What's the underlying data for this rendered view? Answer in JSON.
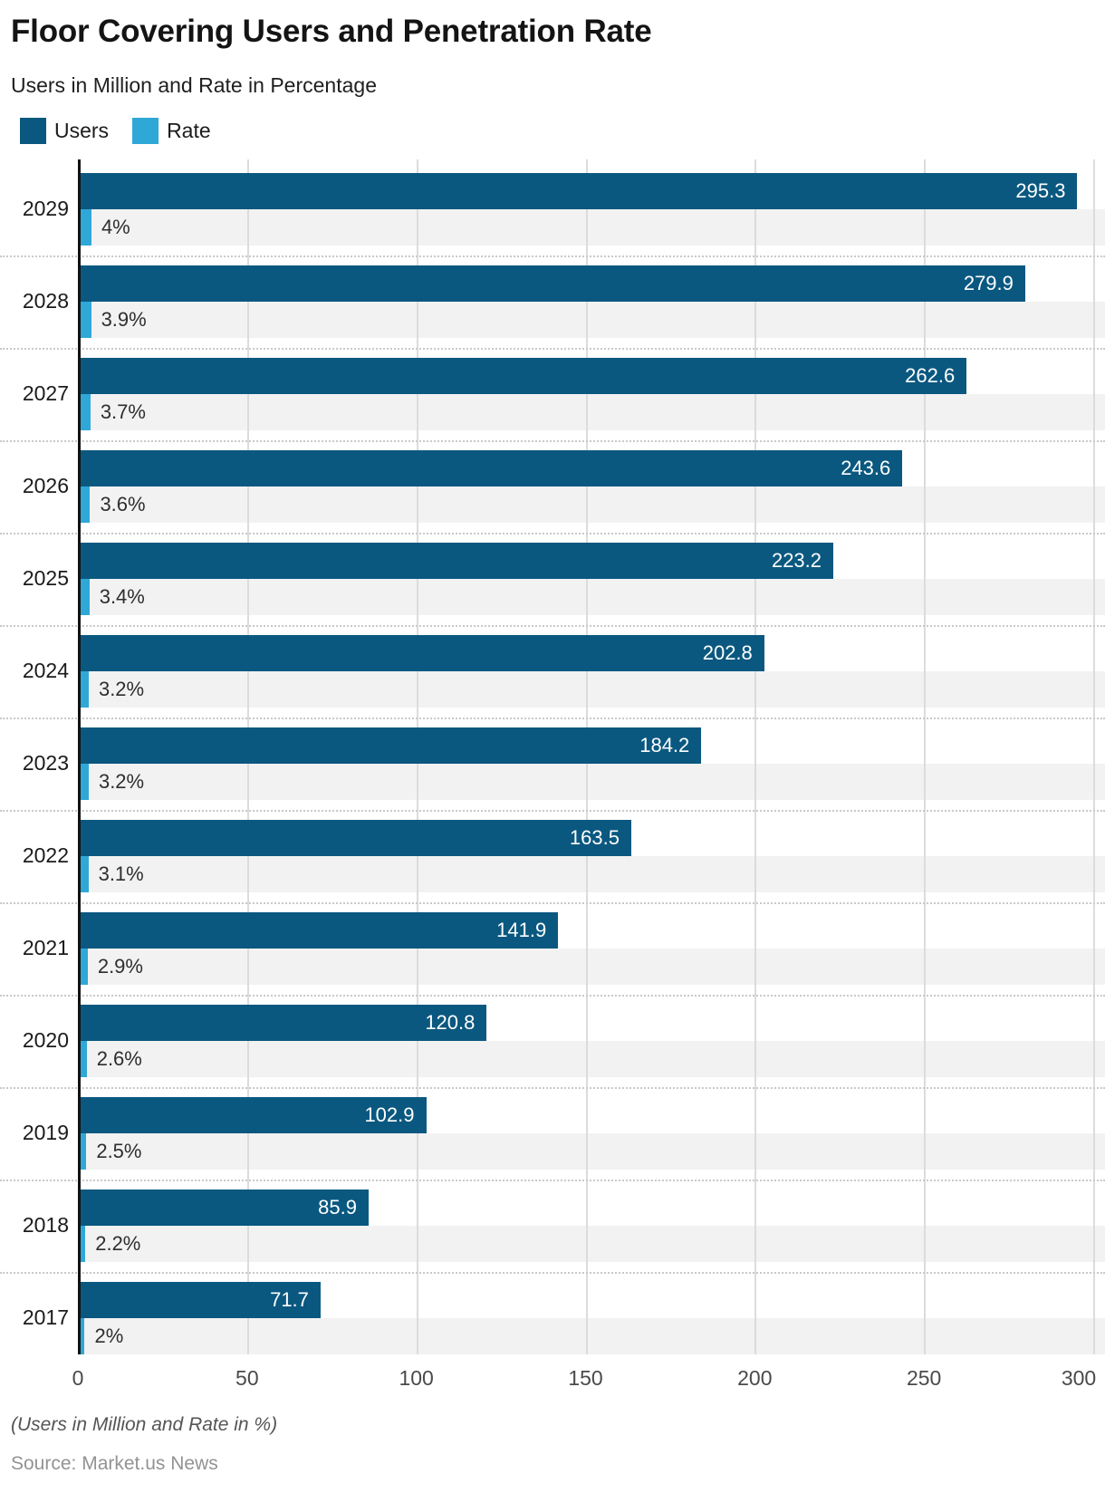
{
  "header": {
    "title": "Floor Covering Users and Penetration Rate",
    "subtitle": "Users in Million and Rate in Percentage"
  },
  "legend": {
    "users_label": "Users",
    "rate_label": "Rate"
  },
  "colors": {
    "users": "#0a5880",
    "rate": "#2fa8d8",
    "track": "#f2f2f2",
    "gridline": "#dcdcdc",
    "axis": "#121212"
  },
  "chart_data": {
    "type": "bar",
    "orientation": "horizontal",
    "title": "Floor Covering Users and Penetration Rate",
    "subtitle": "Users in Million and Rate in Percentage",
    "categories": [
      "2029",
      "2028",
      "2027",
      "2026",
      "2025",
      "2024",
      "2023",
      "2022",
      "2021",
      "2020",
      "2019",
      "2018",
      "2017"
    ],
    "series": [
      {
        "name": "Users",
        "unit": "Million",
        "values": [
          295.3,
          279.9,
          262.6,
          243.6,
          223.2,
          202.8,
          184.2,
          163.5,
          141.9,
          120.8,
          102.9,
          85.9,
          71.7
        ],
        "labels": [
          "295.3",
          "279.9",
          "262.6",
          "243.6",
          "223.2",
          "202.8",
          "184.2",
          "163.5",
          "141.9",
          "120.8",
          "102.9",
          "85.9",
          "71.7"
        ]
      },
      {
        "name": "Rate",
        "unit": "%",
        "values": [
          4,
          3.9,
          3.7,
          3.6,
          3.4,
          3.2,
          3.2,
          3.1,
          2.9,
          2.6,
          2.5,
          2.2,
          2
        ],
        "labels": [
          "4%",
          "3.9%",
          "3.7%",
          "3.6%",
          "3.4%",
          "3.2%",
          "3.2%",
          "3.1%",
          "2.9%",
          "2.6%",
          "2.5%",
          "2.2%",
          "2%"
        ]
      }
    ],
    "xticks": [
      0,
      50,
      100,
      150,
      200,
      250,
      300
    ],
    "xlim": [
      0,
      300
    ],
    "grid": true,
    "legend_position": "top-left"
  },
  "footer": {
    "note": "(Users in Million and Rate in %)",
    "source": "Source: Market.us News"
  }
}
